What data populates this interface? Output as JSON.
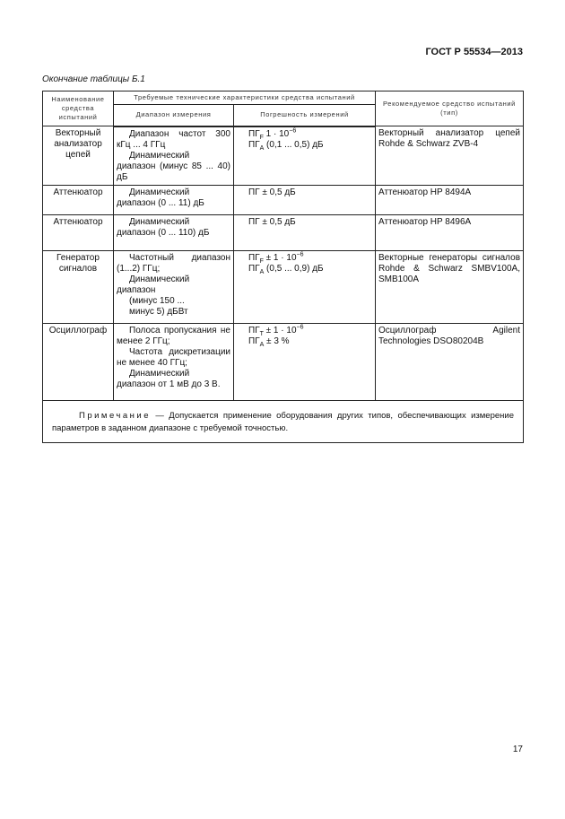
{
  "header": {
    "standard": "ГОСТ Р 55534—2013"
  },
  "caption": "Окончание таблицы Б.1",
  "table": {
    "headers": {
      "name": "Наименование средства испытаний",
      "required": "Требуемые технические характеристики средства испытаний",
      "range": "Диапазон измерения",
      "error": "Погрешность измерений",
      "recommended": "Рекомендуемое средство испытаний (тип)"
    },
    "rows": [
      {
        "name": "Векторный анализатор цепей",
        "range": [
          "Диапазон частот 300 кГц ... 4 ГГц",
          "Динамический диапазон (минус 85 ... 40) дБ"
        ],
        "error": [
          "ПГ|F| 1 · 10|−6",
          "ПГ|A| (0,1 ... 0,5) дБ"
        ],
        "recommended": "Векторный анализатор цепей Rohde & Schwarz ZVB-4"
      },
      {
        "name": "Аттенюатор",
        "range": [
          "Динамический диапазон (0 ... 11) дБ"
        ],
        "error": [
          "ПГ ± 0,5 дБ"
        ],
        "recommended": "Аттенюатор HP 8494A"
      },
      {
        "name": "Аттенюатор",
        "range": [
          "Динамический диапазон (0 ... 110) дБ"
        ],
        "error": [
          "ПГ ± 0,5 дБ"
        ],
        "recommended": "Аттенюатор HP 8496A"
      },
      {
        "name": "Генератор сигналов",
        "range": [
          "Частотный диапазон (1...2) ГГц;",
          "Динамический диапазон",
          "(минус 150 ...",
          "минус 5) дБВт"
        ],
        "error": [
          "ПГ|F| ± 1 · 10|−6",
          "ПГ|A| (0,5 ... 0,9) дБ"
        ],
        "recommended": "Векторные генераторы сигналов Rohde & Schwarz SMBV100A, SMB100A"
      },
      {
        "name": "Осциллограф",
        "range": [
          "Полоса пропускания не менее 2 ГГц;",
          "Частота дискретизации не менее 40 ГГц;",
          "Динамический диапазон от 1 мВ до 3 В."
        ],
        "error": [
          "ПГ|T| ± 1 · 10|−6",
          "ПГ|A| ± 3 %"
        ],
        "recommended": "Осциллограф Agilent Technologies DSO80204B"
      }
    ],
    "note_label": "Примечание",
    "note_text": " — Допускается применение оборудования других типов, обеспечивающих измерение параметров в заданном диапазоне с требуемой точностью."
  },
  "page_number": "17"
}
